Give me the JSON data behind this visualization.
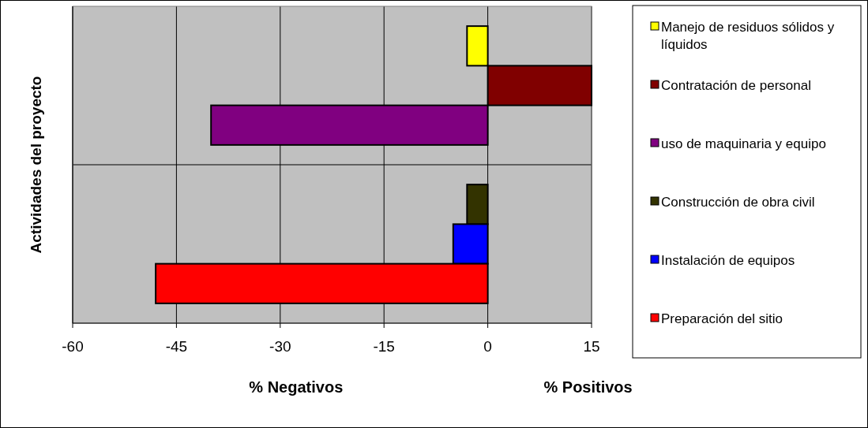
{
  "chart_data": {
    "type": "bar",
    "orientation": "horizontal",
    "ylabel": "Actividades del proyecto",
    "xlabel": "% Negativos",
    "annotations": [
      "% Positivos"
    ],
    "categories": [
      null,
      null
    ],
    "series": [
      {
        "name": "Manejo de residuos sólidos y líquidos",
        "color": "#ffff00",
        "values": [
          -3,
          null
        ]
      },
      {
        "name": "Contratación de personal",
        "color": "#800000",
        "values": [
          15,
          null
        ]
      },
      {
        "name": "uso de maquinaria y equipo",
        "color": "#800080",
        "values": [
          -40,
          null
        ]
      },
      {
        "name": "Construcción de obra civil",
        "color": "#333300",
        "values": [
          null,
          -3
        ]
      },
      {
        "name": "Instalación de equipos",
        "color": "#0000ff",
        "values": [
          null,
          -5
        ]
      },
      {
        "name": "Preparación del sitio",
        "color": "#ff0000",
        "values": [
          null,
          -48
        ]
      }
    ],
    "xlim": [
      -60,
      15
    ],
    "xticks": [
      -60,
      -45,
      -30,
      -15,
      0,
      15
    ],
    "grid": true,
    "legend": "right"
  }
}
